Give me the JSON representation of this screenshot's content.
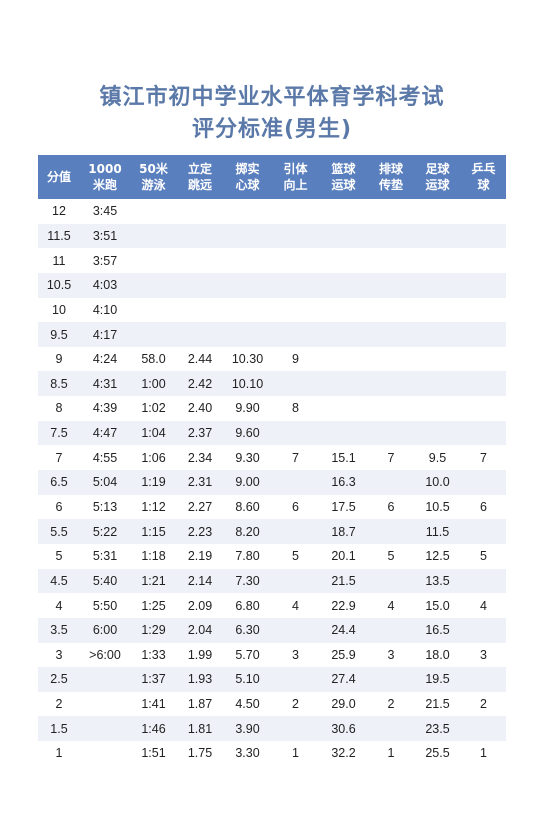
{
  "title": {
    "line1": "镇江市初中学业水平体育学科考试",
    "line2": "评分标准(男生)"
  },
  "columns": [
    [
      "分值"
    ],
    [
      "1000",
      "米跑"
    ],
    [
      "50米",
      "游泳"
    ],
    [
      "立定",
      "跳远"
    ],
    [
      "掷实",
      "心球"
    ],
    [
      "引体",
      "向上"
    ],
    [
      "篮球",
      "运球"
    ],
    [
      "排球",
      "传垫"
    ],
    [
      "足球",
      "运球"
    ],
    [
      "乒乓",
      "球"
    ]
  ],
  "rows": [
    [
      "12",
      "3:45",
      "",
      "",
      "",
      "",
      "",
      "",
      "",
      ""
    ],
    [
      "11.5",
      "3:51",
      "",
      "",
      "",
      "",
      "",
      "",
      "",
      ""
    ],
    [
      "11",
      "3:57",
      "",
      "",
      "",
      "",
      "",
      "",
      "",
      ""
    ],
    [
      "10.5",
      "4:03",
      "",
      "",
      "",
      "",
      "",
      "",
      "",
      ""
    ],
    [
      "10",
      "4:10",
      "",
      "",
      "",
      "",
      "",
      "",
      "",
      ""
    ],
    [
      "9.5",
      "4:17",
      "",
      "",
      "",
      "",
      "",
      "",
      "",
      ""
    ],
    [
      "9",
      "4:24",
      "58.0",
      "2.44",
      "10.30",
      "9",
      "",
      "",
      "",
      ""
    ],
    [
      "8.5",
      "4:31",
      "1:00",
      "2.42",
      "10.10",
      "",
      "",
      "",
      "",
      ""
    ],
    [
      "8",
      "4:39",
      "1:02",
      "2.40",
      "9.90",
      "8",
      "",
      "",
      "",
      ""
    ],
    [
      "7.5",
      "4:47",
      "1:04",
      "2.37",
      "9.60",
      "",
      "",
      "",
      "",
      ""
    ],
    [
      "7",
      "4:55",
      "1:06",
      "2.34",
      "9.30",
      "7",
      "15.1",
      "7",
      "9.5",
      "7"
    ],
    [
      "6.5",
      "5:04",
      "1:19",
      "2.31",
      "9.00",
      "",
      "16.3",
      "",
      "10.0",
      ""
    ],
    [
      "6",
      "5:13",
      "1:12",
      "2.27",
      "8.60",
      "6",
      "17.5",
      "6",
      "10.5",
      "6"
    ],
    [
      "5.5",
      "5:22",
      "1:15",
      "2.23",
      "8.20",
      "",
      "18.7",
      "",
      "11.5",
      ""
    ],
    [
      "5",
      "5:31",
      "1:18",
      "2.19",
      "7.80",
      "5",
      "20.1",
      "5",
      "12.5",
      "5"
    ],
    [
      "4.5",
      "5:40",
      "1:21",
      "2.14",
      "7.30",
      "",
      "21.5",
      "",
      "13.5",
      ""
    ],
    [
      "4",
      "5:50",
      "1:25",
      "2.09",
      "6.80",
      "4",
      "22.9",
      "4",
      "15.0",
      "4"
    ],
    [
      "3.5",
      "6:00",
      "1:29",
      "2.04",
      "6.30",
      "",
      "24.4",
      "",
      "16.5",
      ""
    ],
    [
      "3",
      ">6:00",
      "1:33",
      "1.99",
      "5.70",
      "3",
      "25.9",
      "3",
      "18.0",
      "3"
    ],
    [
      "2.5",
      "",
      "1:37",
      "1.93",
      "5.10",
      "",
      "27.4",
      "",
      "19.5",
      ""
    ],
    [
      "2",
      "",
      "1:41",
      "1.87",
      "4.50",
      "2",
      "29.0",
      "2",
      "21.5",
      "2"
    ],
    [
      "1.5",
      "",
      "1:46",
      "1.81",
      "3.90",
      "",
      "30.6",
      "",
      "23.5",
      ""
    ],
    [
      "1",
      "",
      "1:51",
      "1.75",
      "3.30",
      "1",
      "32.2",
      "1",
      "25.5",
      "1"
    ]
  ]
}
